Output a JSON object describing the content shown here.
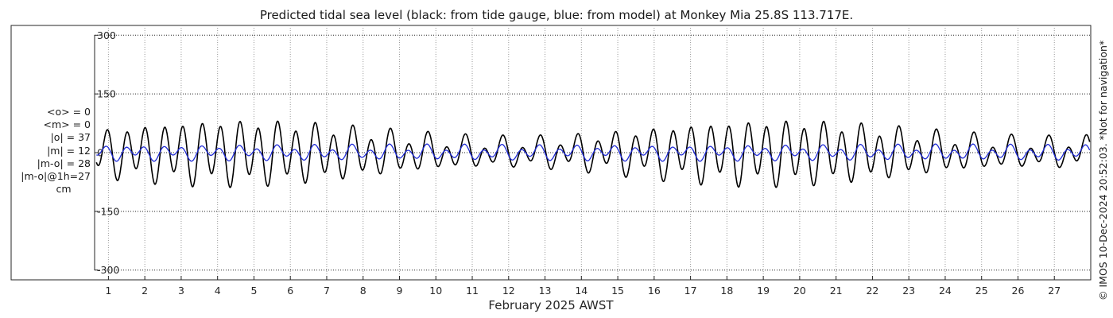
{
  "chart_data": {
    "type": "line",
    "title": "Predicted tidal sea level (black: from tide gauge, blue: from model) at Monkey Mia 25.8S 113.717E.",
    "xlabel": "February 2025 AWST",
    "ylabel": "",
    "x_ticks": [
      "1",
      "2",
      "3",
      "4",
      "5",
      "6",
      "7",
      "8",
      "9",
      "10",
      "11",
      "12",
      "13",
      "14",
      "15",
      "16",
      "17",
      "18",
      "19",
      "20",
      "21",
      "22",
      "23",
      "24",
      "25",
      "26",
      "27"
    ],
    "xlim": [
      0.62,
      28.0
    ],
    "ylim": [
      -325,
      325
    ],
    "y_ticks": [
      300,
      150,
      0,
      -150,
      -300
    ],
    "y_tick_labels": [
      "300",
      "150",
      "0",
      "-150",
      "-300"
    ],
    "grid": true,
    "series": [
      {
        "key": "gauge",
        "color": "#000000",
        "model": {
          "semidiurnal_period_days": 0.5175,
          "diurnal_period_days": 1.0,
          "amplitude_max_cm": 72,
          "amplitude_min_cm": 28,
          "envelope_period_days": 14.77,
          "envelope_peak_day": 4.5
        }
      },
      {
        "key": "model",
        "color": "#1f2bd6",
        "model": {
          "semidiurnal_period_days": 0.5175,
          "diurnal_period_days": 1.0,
          "amplitude_cm": 14,
          "diurnal_amplitude_cm": 8
        }
      }
    ]
  },
  "stats": {
    "mean_obs": "<o> = 0",
    "mean_model": "<m> = 0",
    "abs_obs": "|o| = 37",
    "abs_model": "|m| = 12",
    "abs_diff": "|m-o| = 28",
    "abs_diff_1h": "|m-o|@1h=27",
    "unit": "cm"
  },
  "credit": "© IMOS 10-Dec-2024 20:52:03. *Not for navigation*"
}
